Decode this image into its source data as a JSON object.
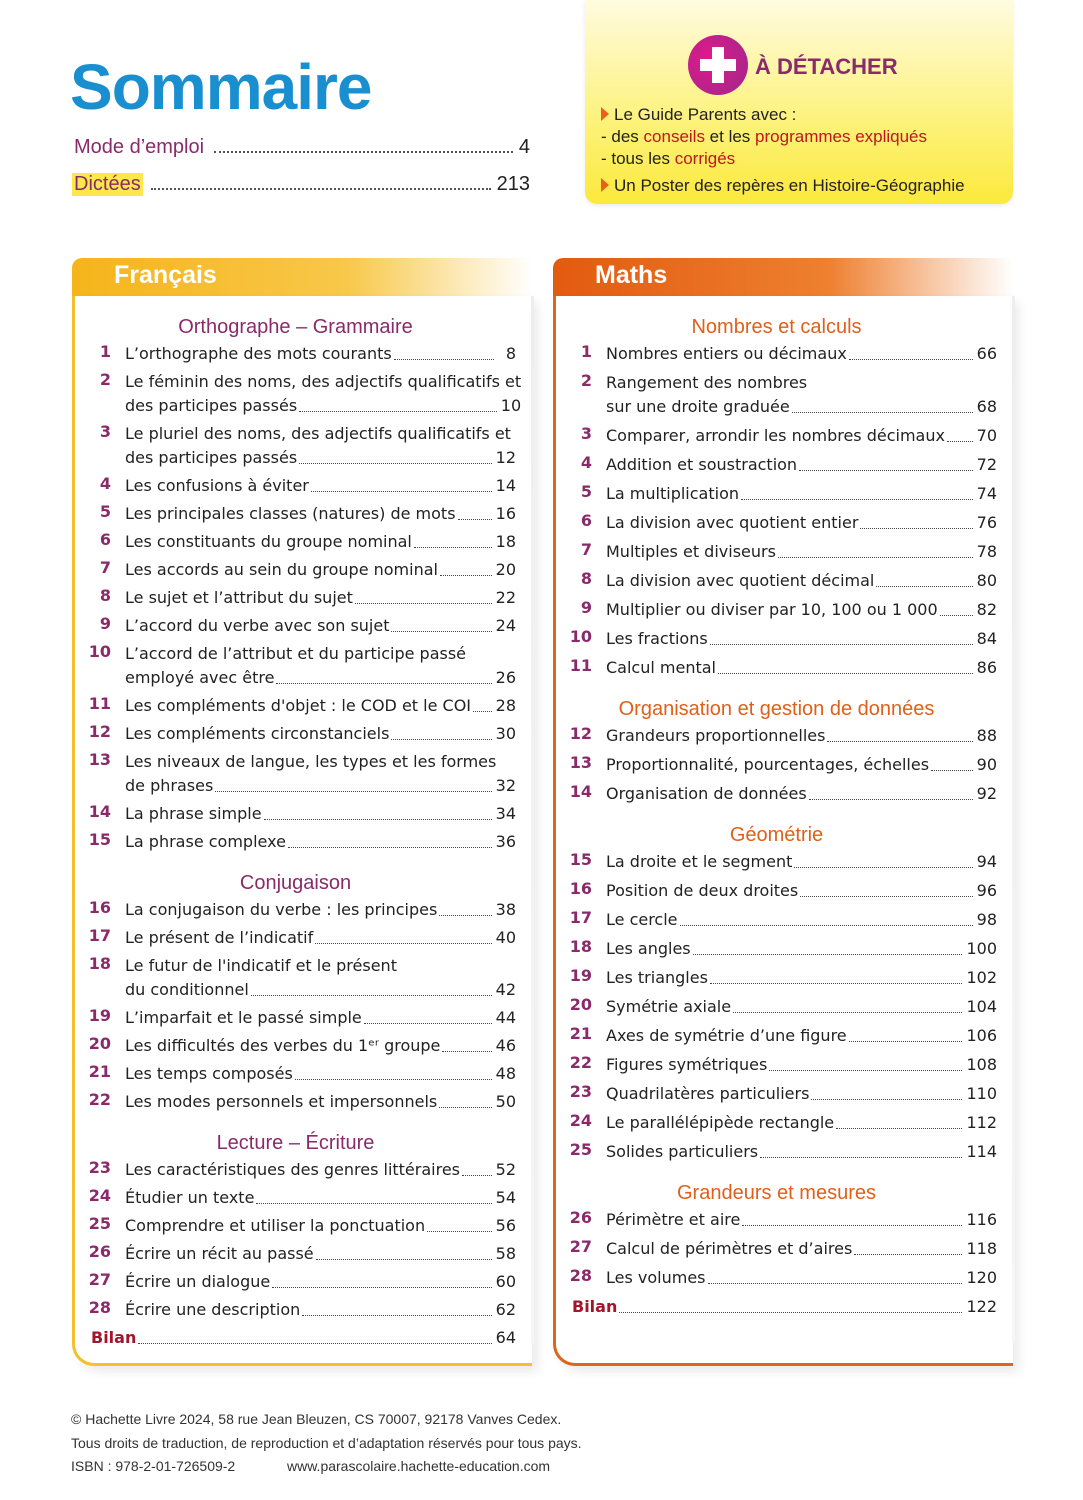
{
  "header": {
    "title": "Sommaire",
    "items": [
      {
        "label": "Mode d’emploi",
        "page": "4"
      },
      {
        "label": "Dictées",
        "page": "213"
      }
    ]
  },
  "detach": {
    "icon": "plus-icon",
    "title": "À DÉTACHER",
    "line1": "Le Guide Parents avec :",
    "line2_a": "- des ",
    "line2_b": "conseils",
    "line2_c": " et les ",
    "line2_d": "programmes expliqués",
    "line3_a": "- tous les ",
    "line3_b": "corrigés",
    "line4": "Un Poster des repères en Histoire-Géographie"
  },
  "colors": {
    "title": "#1a8fd0",
    "numbers": "#8b2a6b",
    "francais": "#f5b41a",
    "maths": "#e8661a",
    "bilan": "#a4152a",
    "highlight": "#fbe84a"
  },
  "francais": {
    "title": "Français",
    "color": "#8b2a6b",
    "gap": 4,
    "sections": [
      {
        "heading": "Orthographe – Grammaire",
        "entries": [
          {
            "n": "1",
            "lines": [
              "L’orthographe des mots courants"
            ],
            "page": "8"
          },
          {
            "n": "2",
            "lines": [
              "Le féminin des noms, des adjectifs qualificatifs et",
              "des participes passés"
            ],
            "page": "10"
          },
          {
            "n": "3",
            "lines": [
              "Le pluriel des noms, des adjectifs qualificatifs et",
              "des participes passés"
            ],
            "page": "12"
          },
          {
            "n": "4",
            "lines": [
              "Les confusions à éviter"
            ],
            "page": "14"
          },
          {
            "n": "5",
            "lines": [
              "Les principales classes (natures) de mots"
            ],
            "page": "16"
          },
          {
            "n": "6",
            "lines": [
              "Les constituants du groupe nominal"
            ],
            "page": "18"
          },
          {
            "n": "7",
            "lines": [
              "Les accords au sein du groupe nominal"
            ],
            "page": "20"
          },
          {
            "n": "8",
            "lines": [
              "Le sujet et l’attribut du sujet"
            ],
            "page": "22"
          },
          {
            "n": "9",
            "lines": [
              "L’accord du verbe avec son sujet"
            ],
            "page": "24"
          },
          {
            "n": "10",
            "lines": [
              "L’accord de l’attribut et du participe passé",
              "employé avec être"
            ],
            "page": "26"
          },
          {
            "n": "11",
            "lines": [
              "Les compléments d'objet : le COD et le COI"
            ],
            "page": "28"
          },
          {
            "n": "12",
            "lines": [
              "Les compléments circonstanciels"
            ],
            "page": "30"
          },
          {
            "n": "13",
            "lines": [
              "Les niveaux de langue, les types et les formes",
              "de phrases"
            ],
            "page": "32"
          },
          {
            "n": "14",
            "lines": [
              "La phrase simple"
            ],
            "page": "34"
          },
          {
            "n": "15",
            "lines": [
              "La phrase complexe"
            ],
            "page": "36"
          }
        ]
      },
      {
        "heading": "Conjugaison",
        "entries": [
          {
            "n": "16",
            "lines": [
              "La conjugaison du verbe : les principes"
            ],
            "page": "38"
          },
          {
            "n": "17",
            "lines": [
              "Le présent de l’indicatif"
            ],
            "page": "40"
          },
          {
            "n": "18",
            "lines": [
              "Le futur de l'indicatif et le présent",
              "du conditionnel"
            ],
            "page": "42"
          },
          {
            "n": "19",
            "lines": [
              "L’imparfait et le passé simple"
            ],
            "page": "44"
          },
          {
            "n": "20",
            "lines": [
              "Les difficultés des verbes du 1ᵉʳ groupe"
            ],
            "page": "46"
          },
          {
            "n": "21",
            "lines": [
              "Les temps composés"
            ],
            "page": "48"
          },
          {
            "n": "22",
            "lines": [
              "Les modes personnels et impersonnels"
            ],
            "page": "50"
          }
        ]
      },
      {
        "heading": "Lecture – Écriture",
        "entries": [
          {
            "n": "23",
            "lines": [
              "Les caractéristiques des genres littéraires"
            ],
            "page": "52"
          },
          {
            "n": "24",
            "lines": [
              "Étudier un texte"
            ],
            "page": "54"
          },
          {
            "n": "25",
            "lines": [
              "Comprendre et utiliser la ponctuation"
            ],
            "page": "56"
          },
          {
            "n": "26",
            "lines": [
              "Écrire un récit au passé"
            ],
            "page": "58"
          },
          {
            "n": "27",
            "lines": [
              "Écrire un dialogue"
            ],
            "page": "60"
          },
          {
            "n": "28",
            "lines": [
              "Écrire une description"
            ],
            "page": "62"
          }
        ]
      }
    ],
    "bilan": {
      "label": "Bilan",
      "page": "64"
    }
  },
  "maths": {
    "title": "Maths",
    "color": "#e0601a",
    "gap": 5,
    "sections": [
      {
        "heading": "Nombres et calculs",
        "entries": [
          {
            "n": "1",
            "lines": [
              "Nombres entiers ou décimaux"
            ],
            "page": "66"
          },
          {
            "n": "2",
            "lines": [
              "Rangement des nombres",
              "sur une droite graduée"
            ],
            "page": "68"
          },
          {
            "n": "3",
            "lines": [
              "Comparer, arrondir les nombres décimaux"
            ],
            "page": "70"
          },
          {
            "n": "4",
            "lines": [
              "Addition et soustraction"
            ],
            "page": "72"
          },
          {
            "n": "5",
            "lines": [
              "La multiplication"
            ],
            "page": "74"
          },
          {
            "n": "6",
            "lines": [
              "La division avec quotient entier"
            ],
            "page": "76"
          },
          {
            "n": "7",
            "lines": [
              "Multiples et diviseurs"
            ],
            "page": "78"
          },
          {
            "n": "8",
            "lines": [
              "La division avec quotient décimal"
            ],
            "page": "80"
          },
          {
            "n": "9",
            "lines": [
              "Multiplier ou diviser par 10, 100 ou 1 000"
            ],
            "page": "82"
          },
          {
            "n": "10",
            "lines": [
              "Les fractions"
            ],
            "page": "84"
          },
          {
            "n": "11",
            "lines": [
              "Calcul mental"
            ],
            "page": "86"
          }
        ]
      },
      {
        "heading": "Organisation et gestion de données",
        "entries": [
          {
            "n": "12",
            "lines": [
              "Grandeurs proportionnelles"
            ],
            "page": "88"
          },
          {
            "n": "13",
            "lines": [
              "Proportionnalité, pourcentages, échelles"
            ],
            "page": "90"
          },
          {
            "n": "14",
            "lines": [
              "Organisation de données"
            ],
            "page": "92"
          }
        ]
      },
      {
        "heading": "Géométrie",
        "entries": [
          {
            "n": "15",
            "lines": [
              "La droite et le segment"
            ],
            "page": "94"
          },
          {
            "n": "16",
            "lines": [
              "Position de deux droites"
            ],
            "page": "96"
          },
          {
            "n": "17",
            "lines": [
              "Le cercle"
            ],
            "page": "98"
          },
          {
            "n": "18",
            "lines": [
              "Les angles"
            ],
            "page": "100"
          },
          {
            "n": "19",
            "lines": [
              "Les triangles"
            ],
            "page": "102"
          },
          {
            "n": "20",
            "lines": [
              "Symétrie axiale"
            ],
            "page": "104"
          },
          {
            "n": "21",
            "lines": [
              "Axes de symétrie d’une figure"
            ],
            "page": "106"
          },
          {
            "n": "22",
            "lines": [
              "Figures symétriques"
            ],
            "page": "108"
          },
          {
            "n": "23",
            "lines": [
              "Quadrilatères particuliers"
            ],
            "page": "110"
          },
          {
            "n": "24",
            "lines": [
              "Le parallélépipède rectangle"
            ],
            "page": "112"
          },
          {
            "n": "25",
            "lines": [
              "Solides particuliers"
            ],
            "page": "114"
          }
        ]
      },
      {
        "heading": "Grandeurs et mesures",
        "entries": [
          {
            "n": "26",
            "lines": [
              "Périmètre et aire"
            ],
            "page": "116"
          },
          {
            "n": "27",
            "lines": [
              "Calcul de périmètres et d’aires"
            ],
            "page": "118"
          },
          {
            "n": "28",
            "lines": [
              "Les volumes"
            ],
            "page": "120"
          }
        ]
      }
    ],
    "bilan": {
      "label": "Bilan",
      "page": "122"
    }
  },
  "footer": {
    "line1": "© Hachette Livre 2024, 58 rue Jean Bleuzen, CS 70007, 92178 Vanves Cedex.",
    "line2": "Tous droits de traduction, de reproduction et d’adaptation réservés pour tous pays.",
    "isbn": "ISBN : 978-2-01-726509-2",
    "url": "www.parascolaire.hachette-education.com"
  }
}
